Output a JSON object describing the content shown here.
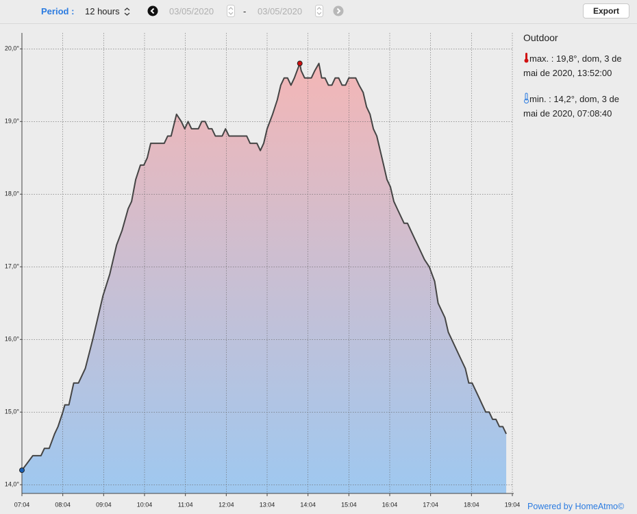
{
  "toolbar": {
    "period_label": "Period :",
    "period": "12 hours",
    "date_from": "03/05/2020",
    "separator": "-",
    "date_to": "03/05/2020",
    "export": "Export"
  },
  "legend": {
    "title": "Outdoor",
    "max": "max. : 19,8°, dom, 3 de mai de 2020, 13:52:00",
    "min": "min. : 14,2°, dom, 3 de mai de 2020, 07:08:40"
  },
  "footer": "Powered by HomeAtmo©",
  "chart_data": {
    "type": "area",
    "xlim": [
      "07:04",
      "19:04"
    ],
    "xticks": [
      "07:04",
      "08:04",
      "09:04",
      "10:04",
      "11:04",
      "12:04",
      "13:04",
      "14:04",
      "15:04",
      "16:04",
      "17:04",
      "18:04",
      "19:04"
    ],
    "ylim": [
      13.88,
      20.22
    ],
    "yticks": [
      {
        "value": 14,
        "label": "14,0°"
      },
      {
        "value": 15,
        "label": "15,0°"
      },
      {
        "value": 16,
        "label": "16,0°"
      },
      {
        "value": 17,
        "label": "17,0°"
      },
      {
        "value": 18,
        "label": "18,0°"
      },
      {
        "value": 19,
        "label": "19,0°"
      },
      {
        "value": 20,
        "label": "20,0°"
      }
    ],
    "grid": true,
    "line_color": "#444444",
    "fill_top": "#f4b6b6",
    "fill_bottom": "#9ec8f0",
    "max_color": "#d01010",
    "min_color": "#1a5fb4",
    "x": [
      "07:04",
      "07:12",
      "07:20",
      "07:32",
      "07:37",
      "07:44",
      "07:52",
      "07:57",
      "08:04",
      "08:07",
      "08:13",
      "08:20",
      "08:27",
      "08:37",
      "08:48",
      "09:03",
      "09:13",
      "09:23",
      "09:31",
      "09:40",
      "09:45",
      "09:51",
      "09:58",
      "10:03",
      "10:08",
      "10:13",
      "10:33",
      "10:38",
      "10:43",
      "10:51",
      "10:58",
      "11:03",
      "11:08",
      "11:13",
      "11:23",
      "11:28",
      "11:33",
      "11:38",
      "11:43",
      "11:48",
      "11:58",
      "12:03",
      "12:08",
      "12:34",
      "12:39",
      "12:49",
      "12:54",
      "12:59",
      "13:04",
      "13:12",
      "13:19",
      "13:24",
      "13:29",
      "13:34",
      "13:39",
      "13:44",
      "13:52",
      "13:54",
      "13:59",
      "14:09",
      "14:14",
      "14:20",
      "14:24",
      "14:29",
      "14:34",
      "14:39",
      "14:44",
      "14:49",
      "14:54",
      "14:59",
      "15:04",
      "15:14",
      "15:19",
      "15:25",
      "15:30",
      "15:35",
      "15:40",
      "15:45",
      "15:50",
      "15:55",
      "16:00",
      "16:05",
      "16:10",
      "16:15",
      "16:25",
      "16:30",
      "16:35",
      "16:40",
      "16:45",
      "16:55",
      "17:02",
      "17:10",
      "17:15",
      "17:20",
      "17:25",
      "17:30",
      "17:35",
      "17:45",
      "17:55",
      "18:00",
      "18:05",
      "18:15",
      "18:20",
      "18:25",
      "18:30",
      "18:35",
      "18:40",
      "18:45",
      "18:50",
      "18:55"
    ],
    "values": [
      14.2,
      14.3,
      14.4,
      14.4,
      14.5,
      14.5,
      14.7,
      14.8,
      15.0,
      15.1,
      15.1,
      15.4,
      15.4,
      15.6,
      16.0,
      16.6,
      16.9,
      17.3,
      17.5,
      17.8,
      17.9,
      18.2,
      18.4,
      18.4,
      18.5,
      18.7,
      18.7,
      18.8,
      18.8,
      19.1,
      19.0,
      18.9,
      19.0,
      18.9,
      18.9,
      19.0,
      19.0,
      18.9,
      18.9,
      18.8,
      18.8,
      18.9,
      18.8,
      18.8,
      18.7,
      18.7,
      18.6,
      18.7,
      18.9,
      19.1,
      19.3,
      19.5,
      19.6,
      19.6,
      19.5,
      19.6,
      19.8,
      19.7,
      19.6,
      19.6,
      19.7,
      19.8,
      19.6,
      19.6,
      19.5,
      19.5,
      19.6,
      19.6,
      19.5,
      19.5,
      19.6,
      19.6,
      19.5,
      19.4,
      19.2,
      19.1,
      18.9,
      18.8,
      18.6,
      18.4,
      18.2,
      18.1,
      17.9,
      17.8,
      17.6,
      17.6,
      17.5,
      17.4,
      17.3,
      17.1,
      17.0,
      16.8,
      16.5,
      16.4,
      16.3,
      16.1,
      16.0,
      15.8,
      15.6,
      15.4,
      15.4,
      15.2,
      15.1,
      15.0,
      15.0,
      14.9,
      14.9,
      14.8,
      14.8,
      14.7
    ]
  }
}
